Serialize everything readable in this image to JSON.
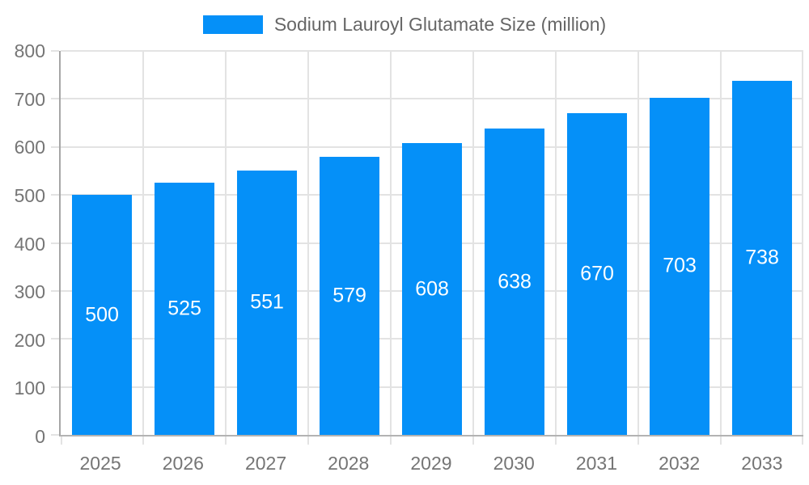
{
  "chart_data": {
    "type": "bar",
    "title": "Sodium Lauroyl Glutamate Size (million)",
    "categories": [
      "2025",
      "2026",
      "2027",
      "2028",
      "2029",
      "2030",
      "2031",
      "2032",
      "2033"
    ],
    "series": [
      {
        "name": "Sodium Lauroyl Glutamate Size (million)",
        "values": [
          500,
          525,
          551,
          579,
          608,
          638,
          670,
          703,
          738
        ]
      }
    ],
    "xlabel": "",
    "ylabel": "",
    "ylim": [
      0,
      800
    ],
    "ytick_step": 100,
    "grid": true,
    "legend_position": "top",
    "data_labels": "inside-center",
    "colors": {
      "bar": "#0590F8",
      "data_label": "#ffffff",
      "axis_text": "#757575",
      "legend_text": "#666666",
      "gridline": "#e3e3e3",
      "axis_line": "#aaaaaa"
    }
  }
}
